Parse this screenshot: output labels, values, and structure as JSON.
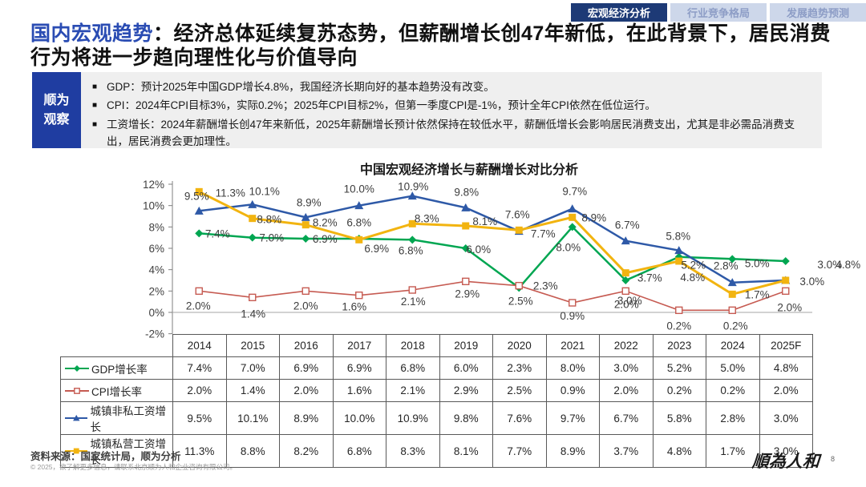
{
  "nav": {
    "tabs": [
      {
        "label": "宏观经济分析",
        "active": true
      },
      {
        "label": "行业竞争格局",
        "active": false
      },
      {
        "label": "发展趋势预测",
        "active": false
      }
    ]
  },
  "title": {
    "highlight": "国内宏观趋势",
    "rest": "：经济总体延续复苏态势，但薪酬增长创47年新低，在此背景下，居民消费行为将进一步趋向理性化与价值导向"
  },
  "observation": {
    "label_line1": "顺为",
    "label_line2": "观察",
    "bullets": [
      "GDP：预计2025年中国GDP增长4.8%，我国经济长期向好的基本趋势没有改变。",
      "CPI：2024年CPI目标3%，实际0.2%；2025年CPI目标2%，但第一季度CPI是-1%，预计全年CPI依然在低位运行。",
      "工资增长：2024年薪酬增长创47年来新低，2025年薪酬增长预计依然保持在较低水平，薪酬低增长会影响居民消费支出，尤其是非必需品消费支出，居民消费会更加理性。"
    ]
  },
  "chart_data": {
    "type": "line",
    "title": "中国宏观经济增长与薪酬增长对比分析",
    "categories": [
      "2014",
      "2015",
      "2016",
      "2017",
      "2018",
      "2019",
      "2020",
      "2021",
      "2022",
      "2023",
      "2024",
      "2025F"
    ],
    "series": [
      {
        "name": "GDP增长率",
        "color": "#00A651",
        "marker": "diamond",
        "values": [
          7.4,
          7.0,
          6.9,
          6.9,
          6.8,
          6.0,
          2.3,
          8.0,
          3.0,
          5.2,
          5.0,
          4.8
        ]
      },
      {
        "name": "CPI增长率",
        "color": "#C65B52",
        "marker": "open-square",
        "values": [
          2.0,
          1.4,
          2.0,
          1.6,
          2.1,
          2.9,
          2.5,
          0.9,
          2.0,
          0.2,
          0.2,
          2.0
        ]
      },
      {
        "name": "城镇非私工资增长",
        "color": "#2E59A7",
        "marker": "triangle",
        "values": [
          9.5,
          10.1,
          8.9,
          10.0,
          10.9,
          9.8,
          7.6,
          9.7,
          6.7,
          5.8,
          2.8,
          3.0
        ]
      },
      {
        "name": "城镇私营工资增长",
        "color": "#F2B410",
        "marker": "square",
        "values": [
          11.3,
          8.8,
          8.2,
          6.8,
          8.3,
          8.1,
          7.7,
          8.9,
          3.7,
          4.8,
          1.7,
          3.0
        ]
      }
    ],
    "unit": "%",
    "ylim": [
      -2,
      12
    ],
    "ytick_step": 2,
    "grid": false,
    "legend_position": "table-left",
    "axis_color": "#7f7f7f",
    "label_color": "#3d3d3d"
  },
  "footer": {
    "source": "资料来源：国家统计局，顺为分析",
    "copyright": "© 2025，欲了解更多信息，请联系北京顺为人和企业咨询有限公司。",
    "logo": "順為人和",
    "page_number": "8"
  }
}
